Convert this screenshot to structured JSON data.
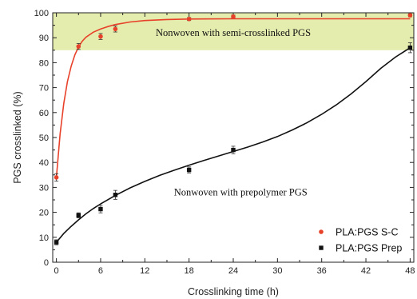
{
  "chart_data": {
    "type": "scatter",
    "title": "",
    "xlabel": "Crosslinking time (h)",
    "ylabel": "PGS crosslinked (%)",
    "xlim": [
      -0.5,
      48.5
    ],
    "ylim": [
      0,
      100
    ],
    "x_ticks": [
      "0",
      "6",
      "12",
      "18",
      "24",
      "30",
      "36",
      "42",
      "48"
    ],
    "y_ticks": [
      "0",
      "10",
      "20",
      "30",
      "40",
      "50",
      "60",
      "70",
      "80",
      "90",
      "100"
    ],
    "grid": false,
    "legend_position": "bottom-right",
    "highlight_band": {
      "y_range": [
        85,
        100
      ],
      "color": "#e4ecae"
    },
    "series": [
      {
        "name": "PLA:PGS S-C",
        "marker": "circle",
        "color": "#e8412a",
        "line_color": "#e8412a",
        "x": [
          0,
          3,
          6,
          8,
          18,
          24,
          48
        ],
        "y": [
          34,
          86.5,
          90.5,
          93.5,
          97.5,
          98.5,
          99
        ],
        "err": [
          1.5,
          1.2,
          1.2,
          1.2,
          0.6,
          0.6,
          0.6
        ],
        "fit_x": [
          0,
          0.5,
          1,
          1.5,
          2,
          2.5,
          3,
          3.5,
          4,
          5,
          6,
          7,
          8,
          10,
          12,
          15,
          18,
          24,
          30,
          36,
          42,
          48
        ],
        "fit_y": [
          34,
          51.3,
          63.6,
          72.4,
          78.6,
          83.1,
          86.3,
          88.6,
          90.2,
          92.2,
          93.5,
          94.5,
          95.3,
          96.3,
          96.9,
          97.3,
          97.5,
          97.6,
          97.6,
          97.6,
          97.6,
          97.6
        ]
      },
      {
        "name": "PLA:PGS Prep",
        "marker": "square",
        "color": "#111111",
        "line_color": "#111111",
        "x": [
          0,
          3,
          6,
          8,
          18,
          24,
          48
        ],
        "y": [
          8,
          18.8,
          21.3,
          27,
          37,
          45,
          86
        ],
        "err": [
          1.0,
          1.0,
          1.5,
          1.8,
          1.2,
          1.5,
          2.0
        ],
        "fit_x": [
          0,
          1,
          2,
          3,
          4,
          5,
          6,
          8,
          10,
          12,
          14,
          16,
          18,
          20,
          22,
          24,
          26,
          28,
          30,
          32,
          34,
          36,
          38,
          40,
          42,
          44,
          46,
          48
        ],
        "fit_y": [
          8,
          11.5,
          14.4,
          17,
          19.4,
          21.5,
          23.4,
          26.8,
          29.8,
          32.4,
          34.8,
          36.9,
          38.9,
          40.8,
          42.6,
          44.4,
          46.2,
          48.2,
          50.4,
          53,
          55.9,
          59.3,
          63.1,
          67.5,
          72.4,
          77.7,
          82.2,
          86
        ]
      }
    ],
    "annotations": [
      {
        "text": "Nonwoven with semi-crosslinked PGS",
        "x": 24,
        "y": 92
      },
      {
        "text": "Nonwoven with prepolymer PGS",
        "x": 25,
        "y": 28
      }
    ]
  }
}
